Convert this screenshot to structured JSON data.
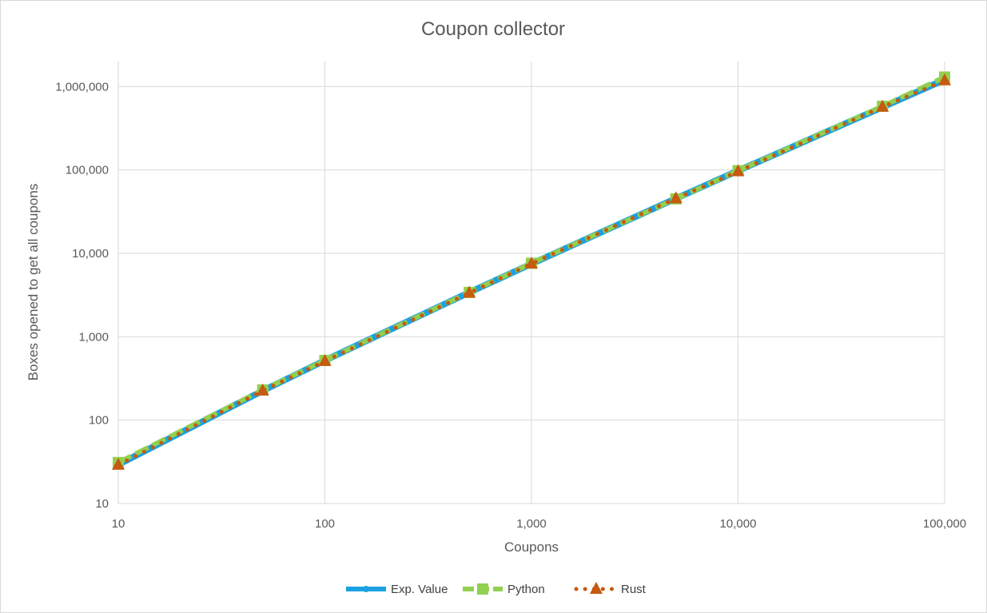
{
  "chart_data": {
    "type": "line",
    "title": "Coupon collector",
    "xlabel": "Coupons",
    "ylabel": "Boxes opened to get all coupons",
    "x_scale": "log",
    "y_scale": "log",
    "xlim": [
      10,
      100000
    ],
    "ylim": [
      10,
      1000000
    ],
    "x_ticks": [
      10,
      100,
      1000,
      10000,
      100000
    ],
    "x_tick_labels": [
      "10",
      "100",
      "1,000",
      "10,000",
      "100,000"
    ],
    "y_ticks": [
      10,
      100,
      1000,
      10000,
      100000,
      1000000
    ],
    "y_tick_labels": [
      "10",
      "100",
      "1,000",
      "10,000",
      "100,000",
      "1,000,000"
    ],
    "grid": true,
    "legend_position": "bottom",
    "series": [
      {
        "name": "Exp. Value",
        "color": "#1ba1e2",
        "line_style": "solid",
        "marker": "circle",
        "x": [
          10,
          50,
          100,
          500,
          1000,
          5000,
          10000,
          50000,
          100000
        ],
        "y": [
          29.3,
          225,
          519,
          3396,
          7485,
          45472,
          97876,
          566040,
          1209014
        ]
      },
      {
        "name": "Python",
        "color": "#92d050",
        "line_style": "dashed",
        "marker": "square",
        "x": [
          10,
          50,
          100,
          500,
          1000,
          5000,
          10000,
          50000,
          100000
        ],
        "y": [
          31,
          230,
          520,
          3400,
          7600,
          45000,
          98000,
          580000,
          1300000
        ]
      },
      {
        "name": "Rust",
        "color": "#c55a11",
        "line_style": "dotted",
        "marker": "triangle",
        "x": [
          10,
          50,
          100,
          500,
          1000,
          5000,
          10000,
          50000,
          100000
        ],
        "y": [
          29,
          225,
          510,
          3350,
          7500,
          45500,
          96000,
          570000,
          1180000
        ]
      }
    ]
  }
}
